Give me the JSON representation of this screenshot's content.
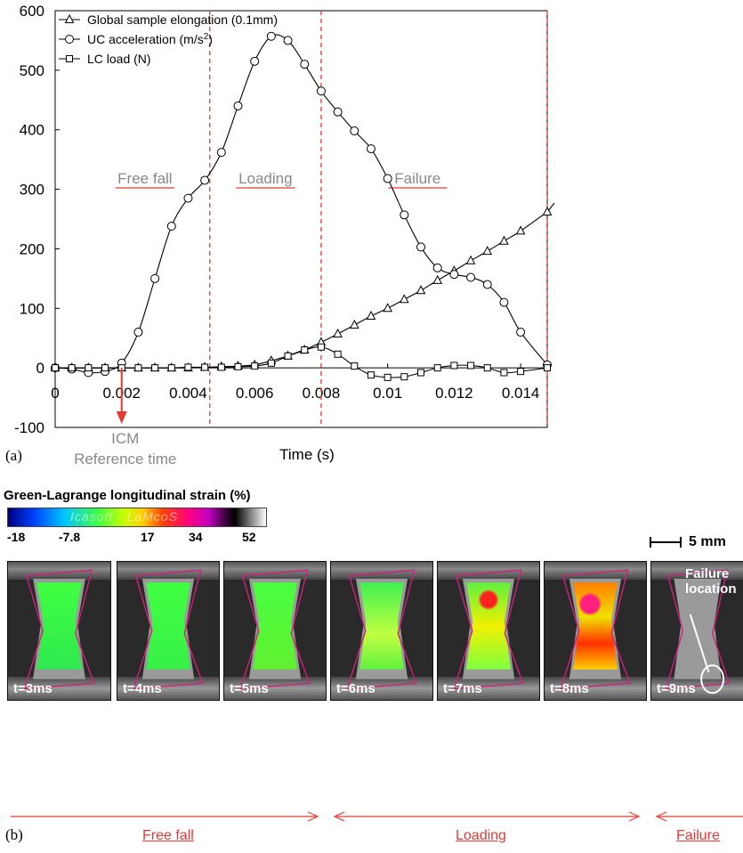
{
  "chart_data": {
    "type": "line",
    "xlabel": "Time (s)",
    "ylabel": "",
    "xlim": [
      0,
      0.0148
    ],
    "ylim": [
      -100,
      600
    ],
    "x_ticks": [
      "0",
      "0.002",
      "0.004",
      "0.006",
      "0.008",
      "0.01",
      "0.012",
      "0.014"
    ],
    "y_ticks": [
      "-100",
      "0",
      "100",
      "200",
      "300",
      "400",
      "500",
      "600"
    ],
    "series": [
      {
        "name": "Global sample elongation (0.1mm)",
        "marker": "triangle",
        "x": [
          0,
          0.0005,
          0.001,
          0.0015,
          0.002,
          0.0025,
          0.003,
          0.0035,
          0.004,
          0.0045,
          0.005,
          0.0055,
          0.006,
          0.0065,
          0.007,
          0.0075,
          0.008,
          0.0085,
          0.009,
          0.0095,
          0.01,
          0.0105,
          0.011,
          0.0115,
          0.012,
          0.0125,
          0.013,
          0.0135,
          0.014,
          0.0148
        ],
        "y": [
          0,
          0,
          0,
          0,
          0,
          0,
          0,
          0,
          0,
          1,
          2,
          3,
          5,
          12,
          20,
          30,
          43,
          57,
          72,
          87,
          100,
          115,
          130,
          147,
          163,
          180,
          196,
          213,
          230,
          262
        ]
      },
      {
        "name": "UC acceleration (m/s²)",
        "marker": "circle",
        "x": [
          0,
          0.0005,
          0.001,
          0.0015,
          0.002,
          0.0025,
          0.003,
          0.0035,
          0.004,
          0.0045,
          0.005,
          0.0055,
          0.006,
          0.0065,
          0.007,
          0.0075,
          0.008,
          0.0085,
          0.009,
          0.0095,
          0.01,
          0.0105,
          0.011,
          0.0115,
          0.012,
          0.0125,
          0.013,
          0.0135,
          0.014,
          0.0148
        ],
        "y": [
          0,
          -2,
          -8,
          -6,
          8,
          60,
          150,
          238,
          285,
          315,
          362,
          440,
          515,
          557,
          550,
          510,
          465,
          430,
          398,
          368,
          318,
          257,
          203,
          168,
          157,
          152,
          140,
          110,
          60,
          5
        ]
      },
      {
        "name": "LC load (N)",
        "marker": "square",
        "x": [
          0,
          0.0005,
          0.001,
          0.0015,
          0.002,
          0.0025,
          0.003,
          0.0035,
          0.004,
          0.0045,
          0.005,
          0.0055,
          0.006,
          0.0065,
          0.007,
          0.0075,
          0.008,
          0.0085,
          0.009,
          0.0095,
          0.01,
          0.0105,
          0.011,
          0.0115,
          0.012,
          0.0125,
          0.013,
          0.0135,
          0.014,
          0.0148
        ],
        "y": [
          0,
          0,
          0,
          0,
          0,
          0,
          0,
          0,
          1,
          1,
          1,
          2,
          3,
          8,
          20,
          30,
          35,
          23,
          3,
          -12,
          -16,
          -15,
          -8,
          0,
          4,
          4,
          0,
          -8,
          -6,
          0
        ]
      }
    ],
    "vlines": [
      0.00465,
      0.008,
      0.0148
    ],
    "phase_labels": [
      "Free fall",
      "Loading",
      "Failure"
    ],
    "annotation": {
      "text_line1": "ICM",
      "text_line2": "Reference time",
      "x": 0.002
    },
    "legend_placement": "top-left",
    "grid": false
  },
  "figure": {
    "panel_a_label": "(a)",
    "panel_b_label": "(b)",
    "strain_title": "Green-Lagrange longitudinal strain (%)",
    "colorbar_watermark": "Icasoft - LaMcoS",
    "colorbar_ticks": [
      "-18",
      "-7.8",
      "17",
      "34",
      "52"
    ],
    "scale_bar": "5 mm",
    "failure_location_line1": "Failure",
    "failure_location_line2": "location",
    "frames": [
      "t=3ms",
      "t=4ms",
      "t=5ms",
      "t=6ms",
      "t=7ms",
      "t=8ms",
      "t=9ms"
    ],
    "bottom_phases": [
      "Free fall",
      "Loading",
      "Failure"
    ],
    "colors": {
      "vline": "#e53935",
      "phase_text": "#888888",
      "accent_red": "#e53935",
      "outline": "#d0207a"
    }
  }
}
